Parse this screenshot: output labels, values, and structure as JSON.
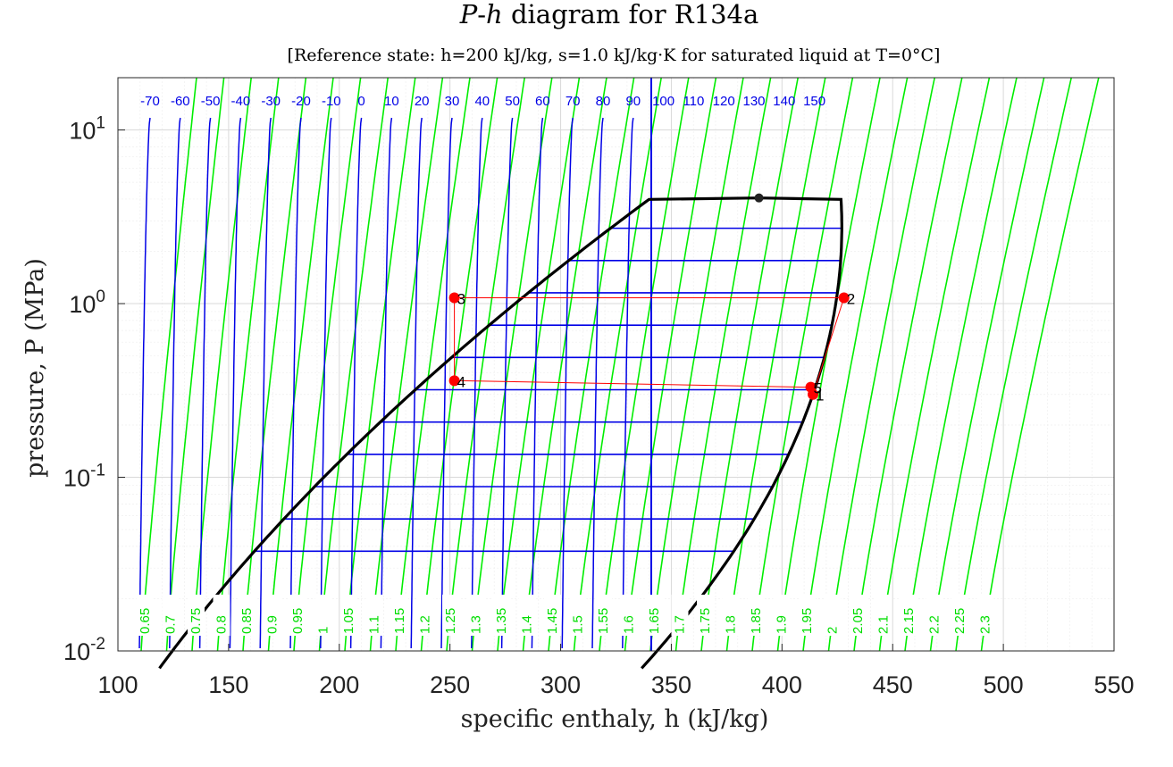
{
  "chart_data": {
    "type": "line",
    "title_prefix": "P",
    "title_dash": "-",
    "title_h": "h",
    "title_rest": " diagram for R134a",
    "subtitle": "[Reference state: h=200 kJ/kg, s=1.0 kJ/kg·K for saturated liquid at T=0°C]",
    "xlabel": "specific enthaly, h (kJ/kg)",
    "ylabel": "pressure, P (MPa)",
    "xlim": [
      100,
      550
    ],
    "ylim": [
      0.01,
      20
    ],
    "yscale": "log",
    "grid": true,
    "x_ticks": [
      "100",
      "150",
      "200",
      "250",
      "300",
      "350",
      "400",
      "450",
      "500",
      "550"
    ],
    "y_ticks": [
      {
        "base": "10",
        "exp": "-2",
        "value": 0.01
      },
      {
        "base": "10",
        "exp": "-1",
        "value": 0.1
      },
      {
        "base": "10",
        "exp": "0",
        "value": 1
      },
      {
        "base": "10",
        "exp": "1",
        "value": 10
      }
    ],
    "isotherm_labels": [
      "-70",
      "-60",
      "-50",
      "-40",
      "-30",
      "-20",
      "-10",
      "0",
      "10",
      "20",
      "30",
      "40",
      "50",
      "60",
      "70",
      "80",
      "90",
      "100",
      "110",
      "120",
      "130",
      "140",
      "150"
    ],
    "isentrope_labels": [
      "0.65",
      "0.7",
      "0.75",
      "0.8",
      "0.85",
      "0.9",
      "0.95",
      "1",
      "1.05",
      "1.1",
      "1.15",
      "1.2",
      "1.25",
      "1.3",
      "1.35",
      "1.4",
      "1.45",
      "1.5",
      "1.55",
      "1.6",
      "1.65",
      "1.7",
      "1.75",
      "1.8",
      "1.85",
      "1.9",
      "1.95",
      "2",
      "2.05",
      "2.1",
      "2.15",
      "2.2",
      "2.25",
      "2.3"
    ],
    "critical_point": {
      "h": 389.6,
      "P": 4.06
    },
    "cycle_states": [
      {
        "label": "1",
        "h": 414,
        "P": 0.3
      },
      {
        "label": "2",
        "h": 428,
        "P": 1.08
      },
      {
        "label": "3",
        "h": 252,
        "P": 1.08
      },
      {
        "label": "4",
        "h": 252,
        "P": 0.36
      },
      {
        "label": "5",
        "h": 413,
        "P": 0.33
      }
    ],
    "colors": {
      "isotherm": "#0000e6",
      "isentrope": "#00ee00",
      "dome": "#000000",
      "cycle": "#ff0000",
      "grid": "#dcdcdc"
    }
  }
}
